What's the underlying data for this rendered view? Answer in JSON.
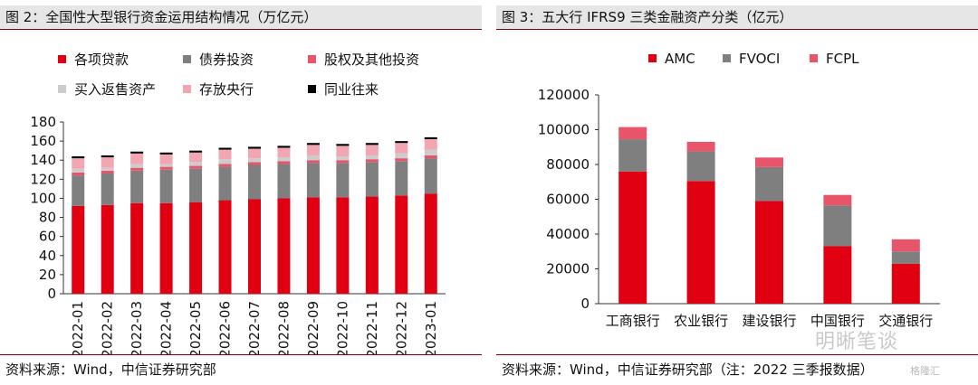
{
  "left": {
    "title": "图 2：全国性大型银行资金运用结构情况（万亿元）",
    "source": "资料来源：Wind，中信证券研究部",
    "chart_data": {
      "type": "bar",
      "stacked": true,
      "categories": [
        "2022-01",
        "2022-02",
        "2022-03",
        "2022-04",
        "2022-05",
        "2022-06",
        "2022-07",
        "2022-08",
        "2022-09",
        "2022-10",
        "2022-11",
        "2022-12",
        "2023-01"
      ],
      "ylim": [
        0,
        180
      ],
      "yticks": [
        0,
        20,
        40,
        60,
        80,
        100,
        120,
        140,
        160,
        180
      ],
      "series": [
        {
          "name": "各项贷款",
          "color": "#e00012",
          "values": [
            92,
            93,
            95,
            95,
            96,
            98,
            99,
            100,
            101,
            101,
            102,
            103,
            105
          ]
        },
        {
          "name": "债券投资",
          "color": "#7f7f7f",
          "values": [
            32,
            33,
            34,
            35,
            35,
            35,
            36,
            36,
            36,
            36,
            36,
            36,
            37
          ]
        },
        {
          "name": "股权及其他投资",
          "color": "#e8556a",
          "values": [
            3,
            3,
            3,
            3,
            3,
            3,
            3,
            3,
            3,
            3,
            3,
            3,
            3
          ]
        },
        {
          "name": "买入返售资产",
          "color": "#cccccc",
          "values": [
            4,
            3,
            4,
            3,
            4,
            5,
            4,
            4,
            5,
            4,
            4,
            5,
            6
          ]
        },
        {
          "name": "存放央行",
          "color": "#f2a6b1",
          "values": [
            11,
            11,
            11,
            10,
            10,
            10,
            10,
            10,
            11,
            11,
            11,
            11,
            11
          ]
        },
        {
          "name": "同业往来",
          "color": "#000000",
          "values": [
            2,
            2,
            2,
            2,
            2,
            2,
            2,
            2,
            2,
            2,
            2,
            2,
            2
          ]
        }
      ],
      "legend_position": "top"
    }
  },
  "right": {
    "title": "图 3：五大行 IFRS9 三类金融资产分类（亿元）",
    "source": "资料来源：Wind，中信证券研究部（注：2022 三季报数据）",
    "chart_data": {
      "type": "bar",
      "stacked": true,
      "categories": [
        "工商银行",
        "农业银行",
        "建设银行",
        "中国银行",
        "交通银行"
      ],
      "ylim": [
        0,
        120000
      ],
      "yticks": [
        0,
        20000,
        40000,
        60000,
        80000,
        100000,
        120000
      ],
      "series": [
        {
          "name": "AMC",
          "color": "#e00012",
          "values": [
            76000,
            70500,
            59000,
            33000,
            23000
          ]
        },
        {
          "name": "FVOCI",
          "color": "#7f7f7f",
          "values": [
            18500,
            17000,
            19500,
            23500,
            7000
          ]
        },
        {
          "name": "FCPL",
          "color": "#e8556a",
          "values": [
            7000,
            5500,
            5500,
            6000,
            7000
          ]
        }
      ],
      "legend_position": "top"
    }
  },
  "watermark": {
    "text": "明晰笔谈",
    "sub": "格隆汇"
  }
}
